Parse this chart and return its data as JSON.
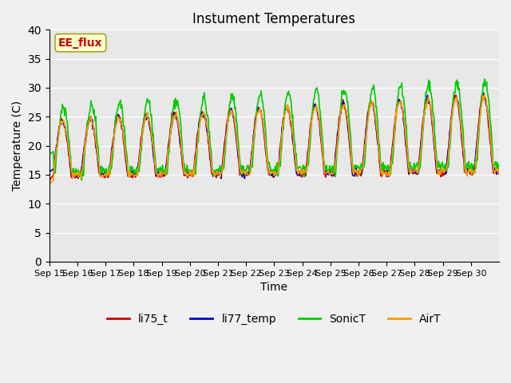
{
  "title": "Instument Temperatures",
  "xlabel": "Time",
  "ylabel": "Temperature (C)",
  "ylim": [
    0,
    40
  ],
  "yticks": [
    0,
    5,
    10,
    15,
    20,
    25,
    30,
    35,
    40
  ],
  "xtick_labels": [
    "Sep 15",
    "Sep 16",
    "Sep 17",
    "Sep 18",
    "Sep 19",
    "Sep 20",
    "Sep 21",
    "Sep 22",
    "Sep 23",
    "Sep 24",
    "Sep 25",
    "Sep 26",
    "Sep 27",
    "Sep 28",
    "Sep 29",
    "Sep 30"
  ],
  "colors": {
    "li75_t": "#cc0000",
    "li77_temp": "#0000cc",
    "SonicT": "#00cc00",
    "AirT": "#ff9900"
  },
  "annotation_text": "EE_flux",
  "annotation_color": "#cc0000",
  "annotation_bg": "#ffffcc",
  "background_color": "#e8e8e8",
  "grid_color": "#ffffff",
  "title_fontsize": 12,
  "axis_fontsize": 10,
  "legend_fontsize": 10,
  "linewidth": 1.2
}
